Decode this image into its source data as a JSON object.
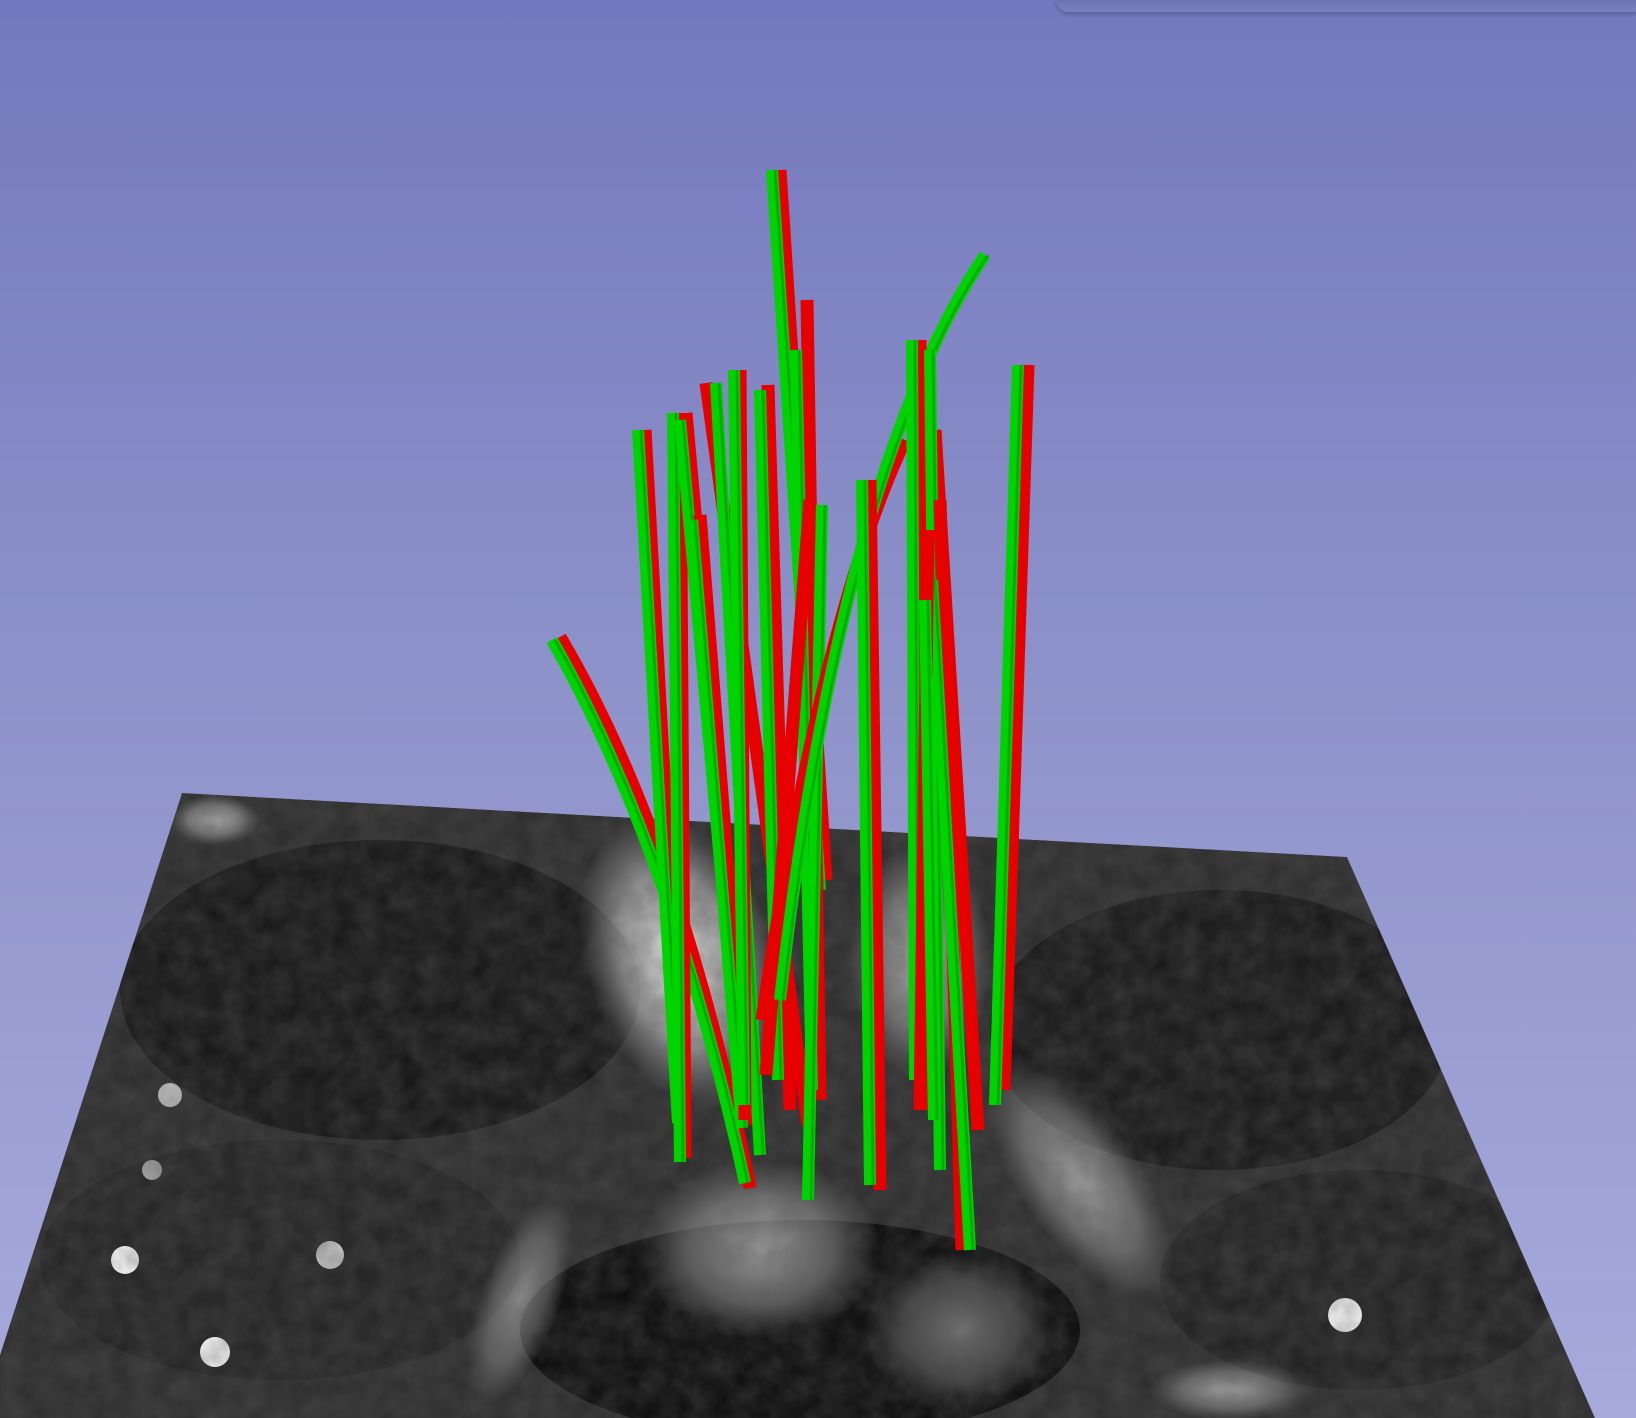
{
  "view": {
    "background_top": "#7478be",
    "background_bottom": "#a7aadb"
  },
  "slice": {
    "name": "mri-axial-slice",
    "tone": "grayscale"
  },
  "needles": {
    "colors": {
      "planned": "#e60000",
      "actual": "#00d400"
    },
    "count": 16
  }
}
